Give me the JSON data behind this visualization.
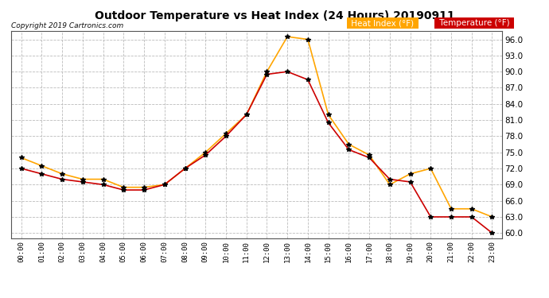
{
  "title": "Outdoor Temperature vs Heat Index (24 Hours) 20190911",
  "copyright": "Copyright 2019 Cartronics.com",
  "hours": [
    "00:00",
    "01:00",
    "02:00",
    "03:00",
    "04:00",
    "05:00",
    "06:00",
    "07:00",
    "08:00",
    "09:00",
    "10:00",
    "11:00",
    "12:00",
    "13:00",
    "14:00",
    "15:00",
    "16:00",
    "17:00",
    "18:00",
    "19:00",
    "20:00",
    "21:00",
    "22:00",
    "23:00"
  ],
  "heat_index": [
    74.0,
    72.5,
    71.0,
    70.0,
    70.0,
    68.5,
    68.5,
    69.0,
    72.0,
    75.0,
    78.5,
    82.0,
    90.0,
    96.5,
    96.0,
    82.0,
    76.5,
    74.5,
    69.0,
    71.0,
    72.0,
    64.5,
    64.5,
    63.0
  ],
  "temperature": [
    72.0,
    71.0,
    70.0,
    69.5,
    69.0,
    68.0,
    68.0,
    69.0,
    72.0,
    74.5,
    78.0,
    82.0,
    89.5,
    90.0,
    88.5,
    80.5,
    75.5,
    74.0,
    70.0,
    69.5,
    63.0,
    63.0,
    63.0,
    60.0
  ],
  "heat_index_color": "#FFA500",
  "temperature_color": "#CC0000",
  "bg_color": "#FFFFFF",
  "plot_bg_color": "#FFFFFF",
  "grid_color": "#BBBBBB",
  "ylim_min": 59.0,
  "ylim_max": 97.5,
  "yticks": [
    60.0,
    63.0,
    66.0,
    69.0,
    72.0,
    75.0,
    78.0,
    81.0,
    84.0,
    87.0,
    90.0,
    93.0,
    96.0
  ],
  "legend_heat_label": "Heat Index (°F)",
  "legend_temp_label": "Temperature (°F)",
  "legend_heat_bg": "#FFA500",
  "legend_temp_bg": "#CC0000",
  "marker": "*",
  "marker_color": "#000000",
  "marker_size": 4,
  "line_width": 1.2
}
